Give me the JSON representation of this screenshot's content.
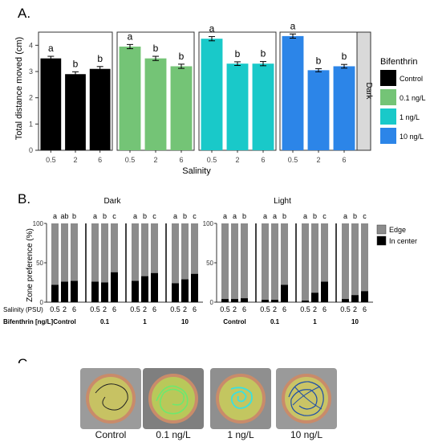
{
  "panelA": {
    "label": "A.",
    "ylabel": "Total distance moved (cm)",
    "xlabel": "Salinity",
    "strip": "Dark",
    "legend": {
      "title": "Bifenthrin",
      "items": [
        {
          "label": "Control",
          "color": "#000000"
        },
        {
          "label": "0.1 ng/L",
          "color": "#74c476"
        },
        {
          "label": "1 ng/L",
          "color": "#19c9c9"
        },
        {
          "label": "10 ng/L",
          "color": "#2c85e8"
        }
      ]
    }
  },
  "panelB": {
    "label": "B.",
    "ylabel": "Zone preference (%)",
    "row1_label": "Salinity (PSU)",
    "row2_label": "Bifenthrin [ng/L]",
    "groups": [
      "Control",
      "0.1",
      "1",
      "10"
    ],
    "facets": [
      "Dark",
      "Light"
    ],
    "legend": [
      {
        "label": "Edge",
        "color": "#8c8c8c"
      },
      {
        "label": "In center",
        "color": "#000000"
      }
    ]
  },
  "panelC": {
    "label": "C .",
    "photos": [
      {
        "label": "Control",
        "track": "#222222",
        "fill": "#c7c263"
      },
      {
        "label": "0.1 ng/L",
        "track": "#6ee86e",
        "fill": "#b9c85a"
      },
      {
        "label": "1 ng/L",
        "track": "#3ae0e0",
        "fill": "#c3c660"
      },
      {
        "label": "10 ng/L",
        "track": "#1f4fa8",
        "fill": "#c9c466"
      }
    ]
  },
  "chart_data": [
    {
      "type": "bar",
      "title": "",
      "xlabel": "Salinity",
      "ylabel": "Total distance moved (cm)",
      "ylim": [
        0,
        4.5
      ],
      "yticks": [
        0,
        1,
        2,
        3,
        4
      ],
      "categories": [
        "0.5",
        "2",
        "6"
      ],
      "facet": "Dark",
      "series": [
        {
          "name": "Control",
          "values": [
            3.5,
            2.9,
            3.1
          ],
          "errors": [
            0.08,
            0.09,
            0.09
          ],
          "letters": [
            "a",
            "b",
            "b"
          ]
        },
        {
          "name": "0.1 ng/L",
          "values": [
            3.95,
            3.5,
            3.2
          ],
          "errors": [
            0.08,
            0.08,
            0.08
          ],
          "letters": [
            "a",
            "b",
            "b"
          ]
        },
        {
          "name": "1 ng/L",
          "values": [
            4.25,
            3.3,
            3.3
          ],
          "errors": [
            0.08,
            0.07,
            0.08
          ],
          "letters": [
            "a",
            "b",
            "b"
          ]
        },
        {
          "name": "10 ng/L",
          "values": [
            4.35,
            3.05,
            3.2
          ],
          "errors": [
            0.08,
            0.06,
            0.07
          ],
          "letters": [
            "a",
            "b",
            "b"
          ]
        }
      ]
    },
    {
      "type": "bar",
      "stacked": true,
      "ylabel": "Zone preference (%)",
      "ylim": [
        0,
        100
      ],
      "yticks": [
        0,
        50,
        100
      ],
      "categories": [
        "0.5",
        "2",
        "6"
      ],
      "facets": [
        {
          "name": "Dark",
          "groups": [
            {
              "bifenthrin": "Control",
              "in_center": [
                22,
                26,
                27
              ],
              "letters": [
                "a",
                "ab",
                "b"
              ]
            },
            {
              "bifenthrin": "0.1",
              "in_center": [
                26,
                25,
                38
              ],
              "letters": [
                "a",
                "b",
                "c"
              ]
            },
            {
              "bifenthrin": "1",
              "in_center": [
                27,
                33,
                37
              ],
              "letters": [
                "a",
                "b",
                "c"
              ]
            },
            {
              "bifenthrin": "10",
              "in_center": [
                24,
                29,
                36
              ],
              "letters": [
                "a",
                "b",
                "c"
              ]
            }
          ]
        },
        {
          "name": "Light",
          "groups": [
            {
              "bifenthrin": "Control",
              "in_center": [
                4,
                4,
                5
              ],
              "letters": [
                "a",
                "a",
                "b"
              ]
            },
            {
              "bifenthrin": "0.1",
              "in_center": [
                3,
                3,
                22
              ],
              "letters": [
                "a",
                "a",
                "b"
              ]
            },
            {
              "bifenthrin": "1",
              "in_center": [
                2,
                12,
                26
              ],
              "letters": [
                "a",
                "b",
                "c"
              ]
            },
            {
              "bifenthrin": "10",
              "in_center": [
                4,
                9,
                14
              ],
              "letters": [
                "a",
                "b",
                "c"
              ]
            }
          ]
        }
      ]
    }
  ]
}
